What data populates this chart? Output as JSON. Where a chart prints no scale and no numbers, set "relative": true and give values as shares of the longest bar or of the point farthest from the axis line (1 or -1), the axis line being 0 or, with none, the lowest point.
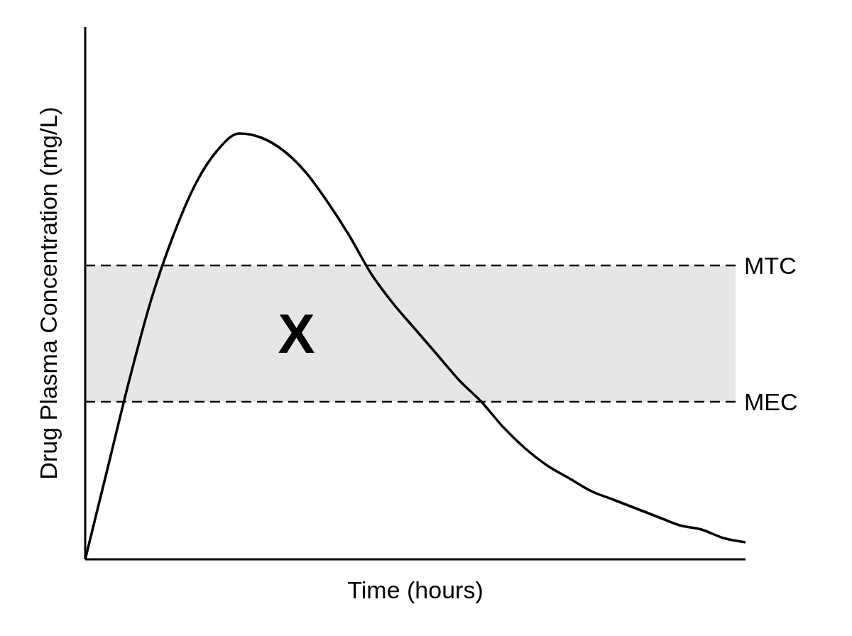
{
  "chart_data": {
    "type": "line",
    "relative": true,
    "xlabel": "Time (hours)",
    "ylabel": "Drug Plasma Concentration (mg/L)",
    "categories": [
      null,
      null,
      null,
      null,
      null,
      null,
      null,
      null,
      null,
      null,
      null,
      null,
      null,
      null,
      null,
      null,
      null,
      null,
      null,
      null,
      null,
      null,
      null,
      null,
      null,
      null,
      null,
      null,
      null,
      null,
      null
    ],
    "series": [
      {
        "color": "#000000",
        "values": [
          0,
          0.21,
          0.42,
          0.61,
          0.76,
          0.88,
          0.96,
          1.0,
          0.99,
          0.96,
          0.91,
          0.84,
          0.76,
          0.67,
          0.6,
          0.54,
          0.48,
          0.42,
          0.37,
          0.31,
          0.26,
          0.22,
          0.19,
          0.16,
          0.14,
          0.12,
          0.1,
          0.08,
          0.07,
          0.05,
          0.04
        ]
      }
    ],
    "ref_lines": [
      {
        "axis": "y",
        "value": 0.69,
        "label": "MTC",
        "line_style": "dashed",
        "color": "#000000"
      },
      {
        "axis": "y",
        "value": 0.37,
        "label": "MEC",
        "line_style": "dashed",
        "color": "#000000"
      }
    ],
    "bands": [
      {
        "axis": "y",
        "from": 0.37,
        "to": 0.69,
        "color": "#e6e6e6"
      }
    ],
    "annotations": [
      "X"
    ],
    "marker": "none",
    "line_style": "solid"
  }
}
